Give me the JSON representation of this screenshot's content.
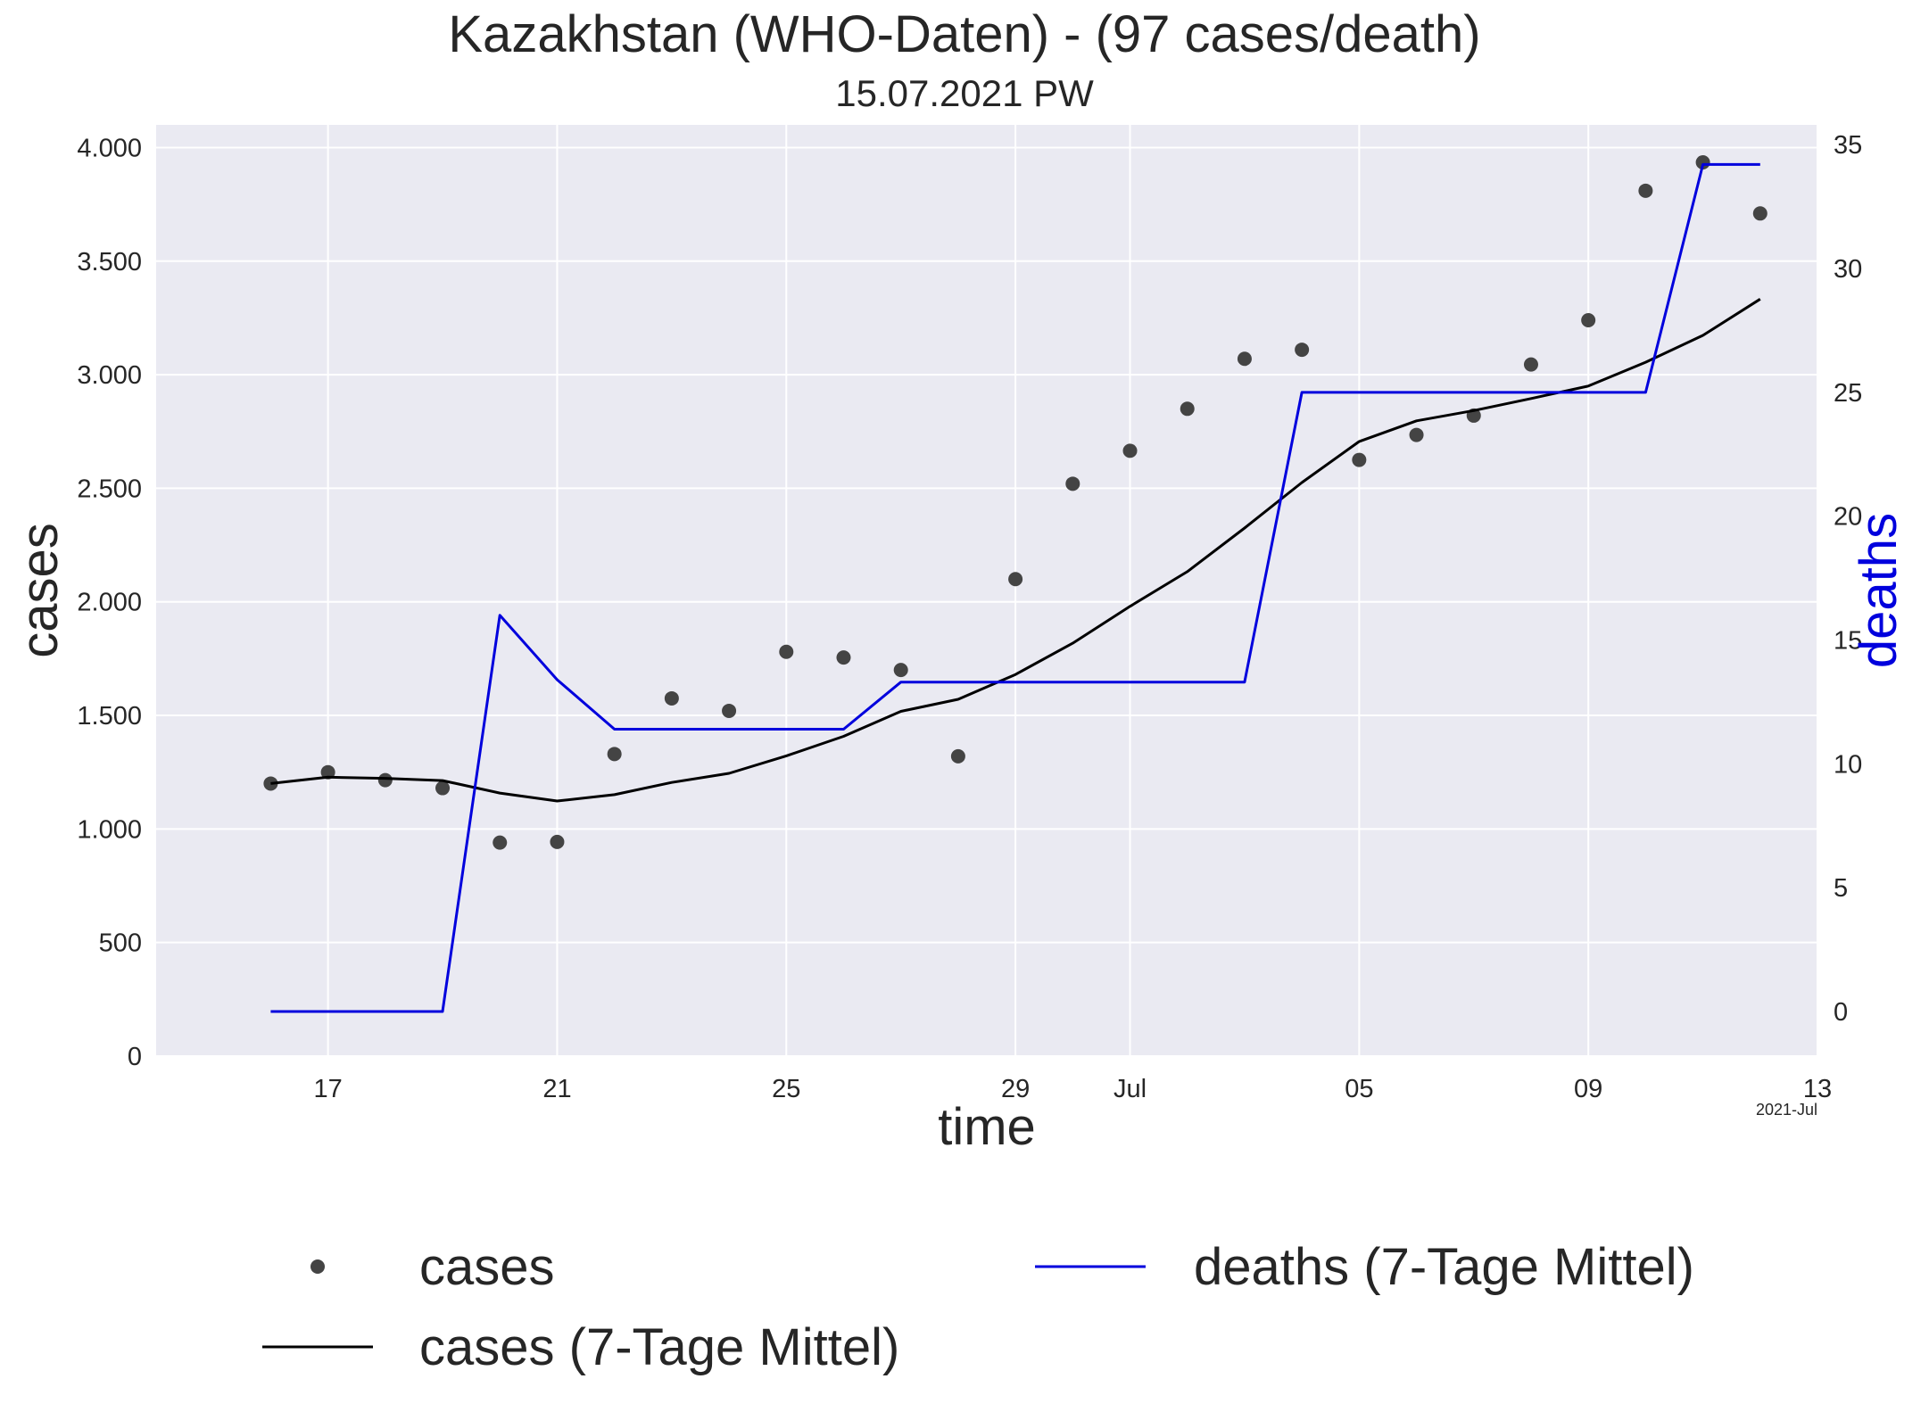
{
  "chart_data": {
    "type": "line",
    "title": "Kazakhstan (WHO-Daten) - (97 cases/death)",
    "subtitle": "15.07.2021 PW",
    "xlabel": "time",
    "ylabel": "cases",
    "y2label": "deaths",
    "x_offset_label": "2021-Jul",
    "xlim": [
      "2021-06-14",
      "2021-07-13"
    ],
    "ylim": [
      0,
      4100
    ],
    "y2lim": [
      -1.8,
      35.8
    ],
    "grid": true,
    "legend_position": "bottom",
    "x_ticks": [
      {
        "date": "2021-06-17",
        "label": "17"
      },
      {
        "date": "2021-06-21",
        "label": "21"
      },
      {
        "date": "2021-06-25",
        "label": "25"
      },
      {
        "date": "2021-06-29",
        "label": "29"
      },
      {
        "date": "2021-07-01",
        "label": "Jul"
      },
      {
        "date": "2021-07-05",
        "label": "05"
      },
      {
        "date": "2021-07-09",
        "label": "09"
      },
      {
        "date": "2021-07-13",
        "label": "13"
      }
    ],
    "y_ticks": [
      {
        "value": 0,
        "label": "0"
      },
      {
        "value": 500,
        "label": "500"
      },
      {
        "value": 1000,
        "label": "1.000"
      },
      {
        "value": 1500,
        "label": "1.500"
      },
      {
        "value": 2000,
        "label": "2.000"
      },
      {
        "value": 2500,
        "label": "2.500"
      },
      {
        "value": 3000,
        "label": "3.000"
      },
      {
        "value": 3500,
        "label": "3.500"
      },
      {
        "value": 4000,
        "label": "4.000"
      }
    ],
    "y2_ticks": [
      {
        "value": 0,
        "label": "0"
      },
      {
        "value": 5,
        "label": "5"
      },
      {
        "value": 10,
        "label": "10"
      },
      {
        "value": 15,
        "label": "15"
      },
      {
        "value": 20,
        "label": "20"
      },
      {
        "value": 25,
        "label": "25"
      },
      {
        "value": 30,
        "label": "30"
      },
      {
        "value": 35,
        "label": "35"
      }
    ],
    "x": [
      "2021-06-16",
      "2021-06-17",
      "2021-06-18",
      "2021-06-19",
      "2021-06-20",
      "2021-06-21",
      "2021-06-22",
      "2021-06-23",
      "2021-06-24",
      "2021-06-25",
      "2021-06-26",
      "2021-06-27",
      "2021-06-28",
      "2021-06-29",
      "2021-06-30",
      "2021-07-01",
      "2021-07-02",
      "2021-07-03",
      "2021-07-04",
      "2021-07-05",
      "2021-07-06",
      "2021-07-07",
      "2021-07-08",
      "2021-07-09",
      "2021-07-10",
      "2021-07-11",
      "2021-07-12"
    ],
    "series": [
      {
        "name": "cases",
        "kind": "scatter",
        "axis": "left",
        "color": "#444444",
        "values": [
          1200,
          1250,
          1215,
          1180,
          940,
          943,
          1330,
          1575,
          1520,
          1780,
          1755,
          1700,
          1320,
          2100,
          2520,
          2665,
          2850,
          3070,
          3110,
          2625,
          2735,
          2820,
          3045,
          3240,
          3810,
          3935,
          3710
        ]
      },
      {
        "name": "cases (7-Tage Mittel)",
        "kind": "line",
        "axis": "left",
        "color": "#000000",
        "values": [
          1200,
          1228,
          1223,
          1213,
          1158,
          1123,
          1151,
          1205,
          1245,
          1322,
          1408,
          1518,
          1571,
          1680,
          1818,
          1980,
          2133,
          2325,
          2525,
          2706,
          2797,
          2842,
          2895,
          2950,
          3055,
          3173,
          3333
        ]
      },
      {
        "name": "deaths (7-Tage Mittel)",
        "kind": "line",
        "axis": "right",
        "color": "#0000dd",
        "values": [
          0,
          0,
          0,
          0,
          16,
          13.4,
          11.4,
          11.4,
          11.4,
          11.4,
          11.4,
          13.3,
          13.3,
          13.3,
          13.3,
          13.3,
          13.3,
          13.3,
          25,
          25,
          25,
          25,
          25,
          25,
          25,
          34.2,
          34.2
        ]
      }
    ]
  }
}
